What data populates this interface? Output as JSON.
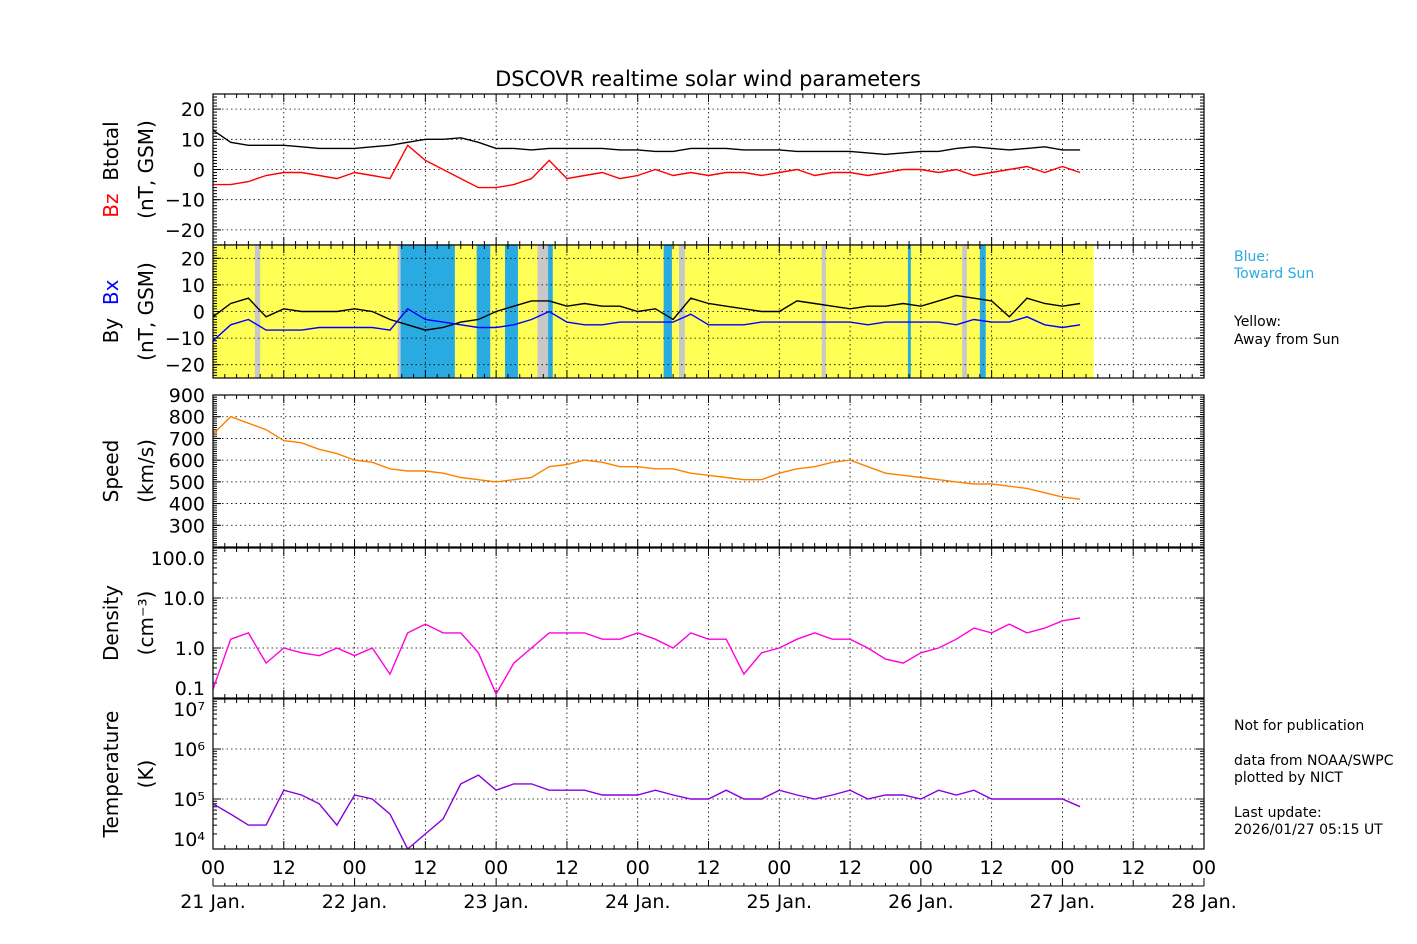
{
  "chart_data": {
    "type": "line",
    "title": "DSCOVR realtime solar wind parameters",
    "x_unit": "hours from 21 Jan. 00 UT",
    "xlim_dates": [
      "21 Jan.",
      "28 Jan."
    ],
    "x_tick_labels": [
      "00",
      "12",
      "00",
      "12",
      "00",
      "12",
      "00",
      "12",
      "00",
      "12",
      "00",
      "12",
      "00",
      "12",
      "00"
    ],
    "date_labels": [
      "21 Jan.",
      "22 Jan.",
      "23 Jan.",
      "24 Jan.",
      "25 Jan.",
      "26 Jan.",
      "27 Jan.",
      "28 Jan."
    ],
    "hours": [
      0,
      3,
      6,
      9,
      12,
      15,
      18,
      21,
      24,
      27,
      30,
      33,
      36,
      39,
      42,
      45,
      48,
      51,
      54,
      57,
      60,
      63,
      66,
      69,
      72,
      75,
      78,
      81,
      84,
      87,
      90,
      93,
      96,
      99,
      102,
      105,
      108,
      111,
      114,
      117,
      120,
      123,
      126,
      129,
      132,
      135,
      138,
      141,
      144,
      147
    ],
    "panels": [
      {
        "id": "mag",
        "ylabel_parts": [
          "Bz",
          "Btotal"
        ],
        "ylabel_colors": [
          "#ff0000",
          "#000000"
        ],
        "unit": "(nT, GSM)",
        "ylim": [
          -25,
          25
        ],
        "scale": "linear",
        "ticks": [
          20,
          10,
          0,
          -10,
          -20
        ],
        "tick_labels": [
          "20",
          "10",
          "0",
          "−10",
          "−20"
        ],
        "series": [
          {
            "name": "Btotal",
            "color": "#000000",
            "values": [
              13,
              9,
              8,
              8,
              8,
              7.5,
              7,
              7,
              7,
              7.5,
              8,
              9,
              10,
              10,
              10.5,
              9,
              7,
              7,
              6.5,
              7,
              7,
              7,
              7,
              6.5,
              6.5,
              6,
              6,
              7,
              7,
              7,
              6.5,
              6.5,
              6.5,
              6,
              6,
              6,
              6,
              5.5,
              5,
              5.5,
              6,
              6,
              7,
              7.5,
              7,
              6.5,
              7,
              7.5,
              6.5,
              6.5
            ]
          },
          {
            "name": "Bz",
            "color": "#ff0000",
            "values": [
              -5,
              -5,
              -4,
              -2,
              -1,
              -1,
              -2,
              -3,
              -1,
              -2,
              -3,
              8,
              3,
              0,
              -3,
              -6,
              -6,
              -5,
              -3,
              3,
              -3,
              -2,
              -1,
              -3,
              -2,
              0,
              -2,
              -1,
              -2,
              -1,
              -1,
              -2,
              -1,
              0,
              -2,
              -1,
              -1,
              -2,
              -1,
              0,
              0,
              -1,
              0,
              -2,
              -1,
              0,
              1,
              -1,
              1,
              -1
            ]
          }
        ]
      },
      {
        "id": "bxby",
        "ylabel_parts": [
          "By",
          "Bx"
        ],
        "ylabel_colors": [
          "#000000",
          "#0000ff"
        ],
        "unit": "(nT, GSM)",
        "ylim": [
          -25,
          25
        ],
        "scale": "linear",
        "ticks": [
          20,
          10,
          0,
          -10,
          -20
        ],
        "tick_labels": [
          "20",
          "10",
          "0",
          "−10",
          "−20"
        ],
        "background": {
          "yellow": "#ffff55",
          "blue": "#29abe2",
          "gray": "#c8c8c8",
          "yellow_span": [
            0,
            149.3
          ],
          "blue_spans": [
            [
              31.7,
              41
            ],
            [
              44.7,
              47
            ],
            [
              49.5,
              51.7
            ],
            [
              56.8,
              57.6
            ],
            [
              76.4,
              77.8
            ],
            [
              117.8,
              118.3
            ],
            [
              130,
              131
            ]
          ],
          "gray_spans": [
            [
              7.1,
              8
            ],
            [
              31.3,
              31.8
            ],
            [
              55,
              56.8
            ],
            [
              79,
              80
            ],
            [
              103.2,
              103.9
            ],
            [
              127,
              127.8
            ]
          ]
        },
        "series": [
          {
            "name": "By",
            "color": "#000000",
            "values": [
              -2,
              3,
              5,
              -2,
              1,
              0,
              0,
              0,
              1,
              0,
              -3,
              -5,
              -7,
              -6,
              -4,
              -3,
              0,
              2,
              4,
              4,
              2,
              3,
              2,
              2,
              0,
              1,
              -3,
              5,
              3,
              2,
              1,
              0,
              0,
              4,
              3,
              2,
              1,
              2,
              2,
              3,
              2,
              4,
              6,
              5,
              4,
              -2,
              5,
              3,
              2,
              3
            ]
          },
          {
            "name": "Bx",
            "color": "#0000ff",
            "values": [
              -11,
              -5,
              -3,
              -7,
              -7,
              -7,
              -6,
              -6,
              -6,
              -6,
              -7,
              1,
              -3,
              -4,
              -5,
              -6,
              -6,
              -5,
              -3,
              0,
              -4,
              -5,
              -5,
              -4,
              -4,
              -4,
              -4,
              -1,
              -5,
              -5,
              -5,
              -4,
              -4,
              -4,
              -4,
              -4,
              -4,
              -5,
              -4,
              -4,
              -4,
              -4,
              -5,
              -3,
              -4,
              -4,
              -2,
              -5,
              -6,
              -5
            ]
          }
        ]
      },
      {
        "id": "speed",
        "ylabel_parts": [
          "Speed"
        ],
        "ylabel_colors": [
          "#000000"
        ],
        "unit": "(km/s)",
        "ylim": [
          200,
          900
        ],
        "scale": "linear",
        "ticks": [
          900,
          800,
          700,
          600,
          500,
          400,
          300
        ],
        "tick_labels": [
          "900",
          "800",
          "700",
          "600",
          "500",
          "400",
          "300"
        ],
        "series": [
          {
            "name": "Speed",
            "color": "#ff8000",
            "values": [
              720,
              800,
              770,
              740,
              690,
              680,
              650,
              630,
              600,
              590,
              560,
              550,
              550,
              540,
              520,
              510,
              500,
              510,
              520,
              570,
              580,
              600,
              590,
              570,
              570,
              560,
              560,
              540,
              530,
              520,
              510,
              510,
              540,
              560,
              570,
              590,
              600,
              570,
              540,
              530,
              520,
              510,
              500,
              490,
              490,
              480,
              470,
              450,
              430,
              420
            ]
          }
        ]
      },
      {
        "id": "density",
        "ylabel_parts": [
          "Density"
        ],
        "ylabel_colors": [
          "#000000"
        ],
        "unit": "(cm⁻³)",
        "ylim": [
          0.1,
          100
        ],
        "scale": "log",
        "ticks": [
          100,
          10,
          1,
          0.1
        ],
        "tick_labels": [
          "100.0",
          "10.0",
          "1.0",
          "0.1"
        ],
        "series": [
          {
            "name": "Density",
            "color": "#ff00dd",
            "values": [
              0.15,
              1.5,
              2,
              0.5,
              1,
              0.8,
              0.7,
              1,
              0.7,
              1,
              0.3,
              2,
              3,
              2,
              2,
              0.8,
              0.12,
              0.5,
              1,
              2,
              2,
              2,
              1.5,
              1.5,
              2,
              1.5,
              1,
              2,
              1.5,
              1.5,
              0.3,
              0.8,
              1,
              1.5,
              2,
              1.5,
              1.5,
              1,
              0.6,
              0.5,
              0.8,
              1,
              1.5,
              2.5,
              2,
              3,
              2,
              2.5,
              3.5,
              4
            ]
          }
        ]
      },
      {
        "id": "temperature",
        "ylabel_parts": [
          "Temperature"
        ],
        "ylabel_colors": [
          "#000000"
        ],
        "unit": "(K)",
        "ylim": [
          10000,
          10000000
        ],
        "scale": "log",
        "ticks": [
          10000000,
          1000000,
          100000,
          10000
        ],
        "tick_labels": [
          "10⁷",
          "10⁶",
          "10⁵",
          "10⁴"
        ],
        "series": [
          {
            "name": "Temperature",
            "color": "#8800dd",
            "values": [
              80000,
              50000,
              30000,
              30000,
              150000,
              120000,
              80000,
              30000,
              120000,
              100000,
              50000,
              10000,
              20000,
              40000,
              200000,
              300000,
              150000,
              200000,
              200000,
              150000,
              150000,
              150000,
              120000,
              120000,
              120000,
              150000,
              120000,
              100000,
              100000,
              150000,
              100000,
              100000,
              150000,
              120000,
              100000,
              120000,
              150000,
              100000,
              120000,
              120000,
              100000,
              150000,
              120000,
              150000,
              100000,
              100000,
              100000,
              100000,
              100000,
              70000
            ]
          }
        ]
      }
    ]
  },
  "legend": {
    "blue_label": "Blue:",
    "blue_text": "Toward Sun",
    "yellow_label": "Yellow:",
    "yellow_text": "Away from Sun",
    "blue_color": "#29abe2"
  },
  "notes": {
    "line1": "Not for publication",
    "line2": "data from NOAA/SWPC",
    "line3": "plotted by NICT",
    "line4": "Last update:",
    "line5": "2026/01/27 05:15 UT"
  }
}
